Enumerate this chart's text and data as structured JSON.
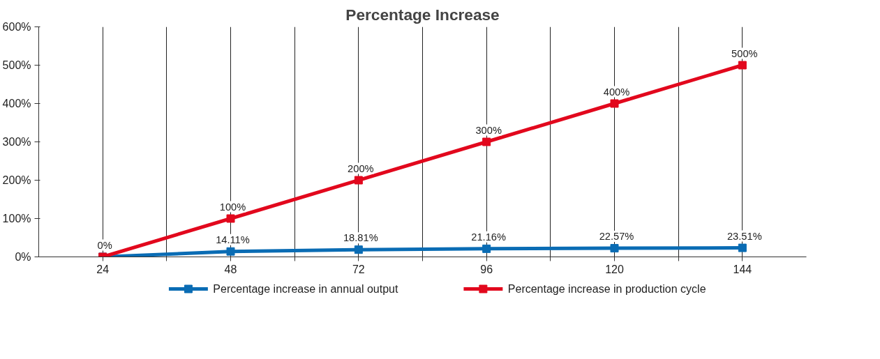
{
  "chart_data": {
    "type": "line",
    "title": "Percentage Increase",
    "x": [
      24,
      48,
      72,
      96,
      120,
      144
    ],
    "xlim": [
      12,
      156
    ],
    "xticks": [
      24,
      {
        "value": 36,
        "label": null
      },
      48,
      {
        "value": 60,
        "label": null
      },
      72,
      {
        "value": 84,
        "label": null
      },
      96,
      {
        "value": 108,
        "label": null
      },
      120,
      {
        "value": 132,
        "label": null
      },
      144
    ],
    "ylim": [
      0,
      600
    ],
    "yticks": [
      {
        "value": 0,
        "label": "0%"
      },
      {
        "value": 100,
        "label": "100%"
      },
      {
        "value": 200,
        "label": "200%"
      },
      {
        "value": 300,
        "label": "300%"
      },
      {
        "value": 400,
        "label": "400%"
      },
      {
        "value": 500,
        "label": "500%"
      },
      {
        "value": 600,
        "label": "600%"
      }
    ],
    "series": [
      {
        "name": "Percentage increase in annual output",
        "color": "#0a6cb4",
        "values": [
          0,
          14.11,
          18.81,
          21.16,
          22.57,
          23.51
        ],
        "value_labels": [
          null,
          "14.11%",
          "18.81%",
          "21.16%",
          "22.57%",
          "23.51%"
        ]
      },
      {
        "name": "Percentage increase in production cycle",
        "color": "#e2081d",
        "values": [
          0,
          100,
          200,
          300,
          400,
          500
        ],
        "value_labels": [
          "0%",
          "100%",
          "200%",
          "300%",
          "400%",
          "500%"
        ]
      }
    ],
    "marker": "square",
    "line_style": "solid",
    "grid": "x",
    "legend": "bottom"
  }
}
